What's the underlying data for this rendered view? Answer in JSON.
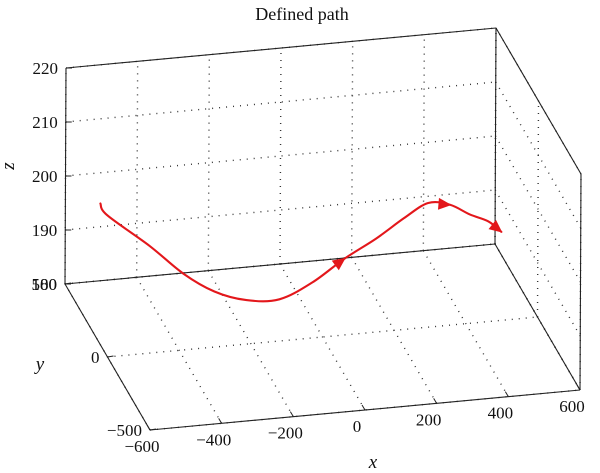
{
  "chart_data": {
    "type": "line",
    "title": "Defined path",
    "xlabel": "x",
    "ylabel": "y",
    "zlabel": "z",
    "xlim": [
      -600,
      600
    ],
    "ylim": [
      -500,
      500
    ],
    "zlim": [
      180,
      220
    ],
    "x_ticks": [
      "−600",
      "−400",
      "−200",
      "0",
      "200",
      "400",
      "600"
    ],
    "y_ticks": [
      "−500",
      "0",
      "500"
    ],
    "z_ticks": [
      "180",
      "190",
      "200",
      "210",
      "220"
    ],
    "grid": true,
    "series": [
      {
        "color": "#e3171b",
        "x": [
          -550,
          -550,
          -460,
          -380,
          -300,
          -220,
          -140,
          -60,
          20,
          100,
          180,
          260,
          340,
          420,
          500,
          560
        ],
        "y": [
          300,
          220,
          100,
          40,
          10,
          -30,
          -80,
          -130,
          -170,
          -200,
          -190,
          -140,
          -60,
          40,
          160,
          260
        ],
        "z": [
          200,
          200,
          197,
          193,
          190,
          189,
          190,
          194,
          199,
          203,
          206,
          207,
          204,
          199,
          194,
          189
        ]
      }
    ],
    "arrows": [
      "mid-path",
      "near-end",
      "end"
    ]
  }
}
